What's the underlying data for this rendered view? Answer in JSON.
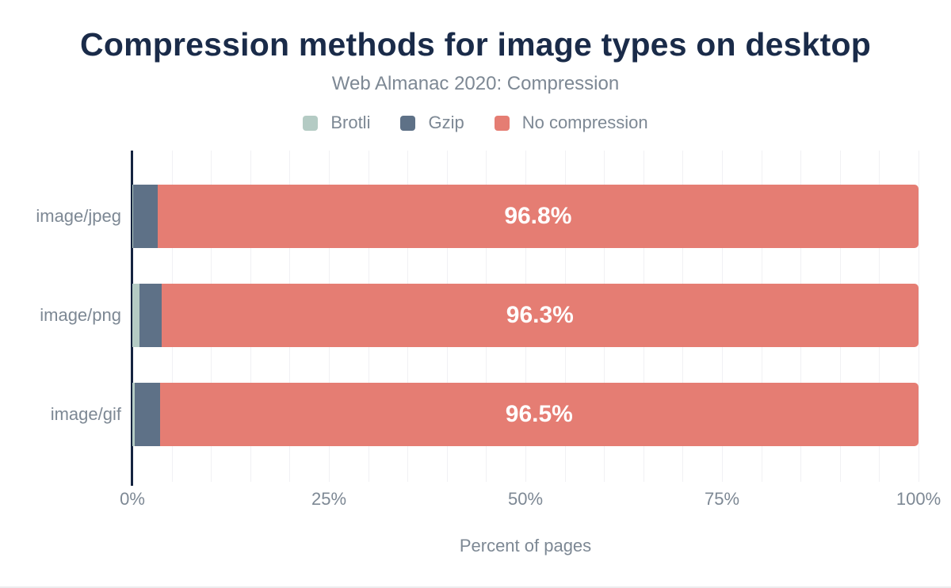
{
  "header": {
    "title": "Compression methods for image types on desktop",
    "subtitle": "Web Almanac 2020: Compression"
  },
  "colors": {
    "background": "#ffffff",
    "title": "#1a2b49",
    "muted": "#7d8894",
    "axis": "#14233f",
    "grid": "#f1f1f4",
    "bar_label": "#ffffff"
  },
  "chart_data": {
    "type": "bar",
    "orientation": "horizontal",
    "stacked": true,
    "title": "Compression methods for image types on desktop",
    "subtitle": "Web Almanac 2020: Compression",
    "categories": [
      "image/jpeg",
      "image/png",
      "image/gif"
    ],
    "series": [
      {
        "name": "Brotli",
        "color": "#b4cbc4",
        "values": [
          0.1,
          0.9,
          0.3
        ]
      },
      {
        "name": "Gzip",
        "color": "#5e7187",
        "values": [
          3.1,
          2.8,
          3.2
        ]
      },
      {
        "name": "No compression",
        "color": "#e57d73",
        "values": [
          96.8,
          96.3,
          96.5
        ],
        "labels": [
          "96.8%",
          "96.3%",
          "96.5%"
        ]
      }
    ],
    "xlabel": "Percent of pages",
    "x_ticks": [
      {
        "label": "0%",
        "value": 0
      },
      {
        "label": "25%",
        "value": 25
      },
      {
        "label": "50%",
        "value": 50
      },
      {
        "label": "75%",
        "value": 75
      },
      {
        "label": "100%",
        "value": 100
      }
    ],
    "xlim": [
      0,
      100
    ],
    "gridline_step": 5,
    "grid": true,
    "legend_position": "top"
  }
}
